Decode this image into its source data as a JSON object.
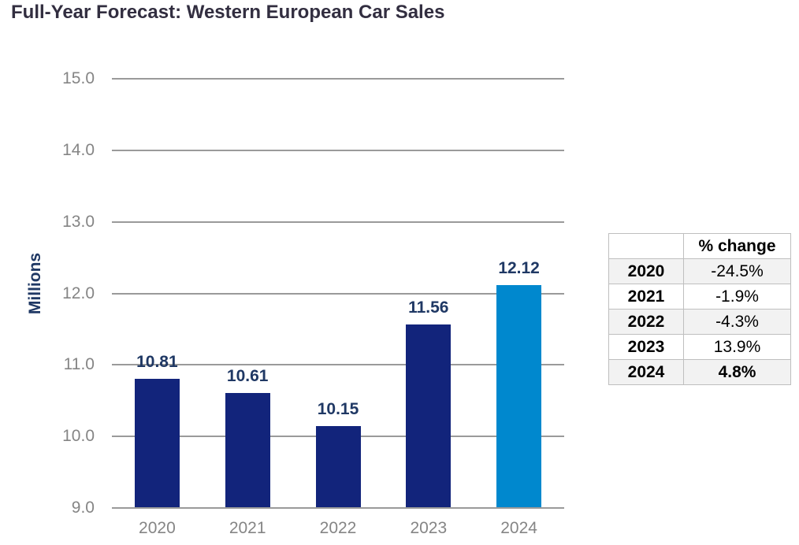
{
  "chart_data": {
    "type": "bar",
    "title": "Full-Year Forecast: Western European Car Sales",
    "categories": [
      "2020",
      "2021",
      "2022",
      "2023",
      "2024"
    ],
    "values": [
      10.81,
      10.61,
      10.15,
      11.56,
      12.12
    ],
    "data_labels": [
      "10.81",
      "10.61",
      "10.15",
      "11.56",
      "12.12"
    ],
    "xlabel": "",
    "ylabel": "Millions",
    "ylim": [
      9.0,
      15.0
    ],
    "yticks": [
      {
        "value": 15.0,
        "label": "15.0"
      },
      {
        "value": 14.0,
        "label": "14.0"
      },
      {
        "value": 13.0,
        "label": "13.0"
      },
      {
        "value": 12.0,
        "label": "12.0"
      },
      {
        "value": 11.0,
        "label": "11.0"
      },
      {
        "value": 10.0,
        "label": "10.0"
      },
      {
        "value": 9.0,
        "label": "9.0"
      }
    ],
    "grid": true,
    "legend_position": "none",
    "highlight_index": 4,
    "colors": {
      "bar": "#12247B",
      "highlight_bar": "#0088CE",
      "data_label": "#1F3864",
      "axis_title": "#1F3864",
      "tick_text": "#858585",
      "gridline": "#9A9A9A",
      "title_text": "#322E40"
    }
  },
  "table": {
    "header": {
      "corner": "",
      "change": "% change"
    },
    "rows": [
      {
        "year": "2020",
        "change": "-24.5%"
      },
      {
        "year": "2021",
        "change": "-1.9%"
      },
      {
        "year": "2022",
        "change": "-4.3%"
      },
      {
        "year": "2023",
        "change": "13.9%"
      },
      {
        "year": "2024",
        "change": "4.8%"
      }
    ]
  }
}
